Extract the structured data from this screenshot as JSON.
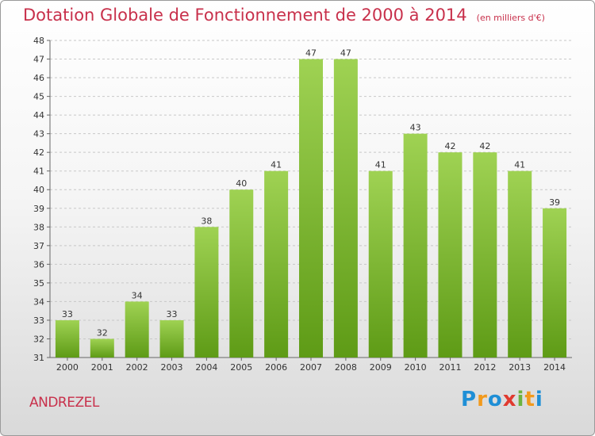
{
  "header": {
    "title": "Dotation Globale de Fonctionnement de 2000 à 2014",
    "unit": "(en milliers d'€)"
  },
  "footer": {
    "commune": "ANDREZEL",
    "logo_letters": [
      "P",
      "r",
      "o",
      "x",
      "i",
      "t",
      "i"
    ],
    "logo_colors": [
      "#1f8fd6",
      "#f29a1d",
      "#1f8fd6",
      "#e03a2f",
      "#6cb33f",
      "#f29a1d",
      "#1f8fd6"
    ]
  },
  "colors": {
    "bar_top": "#9fd253",
    "bar_bottom": "#5e9b16",
    "text": "#333333",
    "title": "#c8304b",
    "grid": "#c8c8c8"
  },
  "chart_data": {
    "type": "bar",
    "title": "Dotation Globale de Fonctionnement de 2000 à 2014",
    "subtitle": "(en milliers d'€)",
    "xlabel": "",
    "ylabel": "",
    "categories": [
      "2000",
      "2001",
      "2002",
      "2003",
      "2004",
      "2005",
      "2006",
      "2007",
      "2008",
      "2009",
      "2010",
      "2011",
      "2012",
      "2013",
      "2014"
    ],
    "values": [
      33,
      32,
      34,
      33,
      38,
      40,
      41,
      47,
      47,
      41,
      43,
      42,
      42,
      41,
      39
    ],
    "ylim": [
      31,
      48
    ],
    "yticks": [
      31,
      32,
      33,
      34,
      35,
      36,
      37,
      38,
      39,
      40,
      41,
      42,
      43,
      44,
      45,
      46,
      47,
      48
    ],
    "grid": true,
    "legend": "none"
  }
}
